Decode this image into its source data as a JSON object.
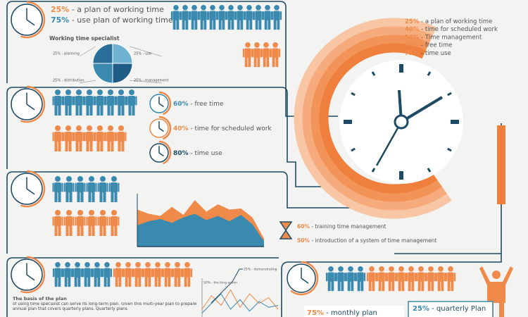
{
  "top": {
    "stats": [
      {
        "pct": "25%",
        "label": " - a plan of working time",
        "color": "#f08a4b"
      },
      {
        "pct": "75%",
        "label": " - use plan of working time",
        "color": "#3a8ab0"
      }
    ]
  },
  "pie": {
    "title": "Working time specialist",
    "values": [
      25,
      25,
      25,
      25
    ],
    "labels": [
      "25% - use",
      "25% - management",
      "25% - distribution",
      "25% - planning"
    ],
    "colors": [
      "#6fb2d2",
      "#1f5d86",
      "#3a8ab0",
      "#2a6f99"
    ]
  },
  "clock_legend": [
    {
      "pct": "25%",
      "label": " - a plan of working time"
    },
    {
      "pct": "40%",
      "label": " - time for scheduled work"
    },
    {
      "pct": "50%",
      "label": " - Time management"
    },
    {
      "pct": "65%",
      "label": " - free time"
    },
    {
      "pct": "75%",
      "label": " - time use"
    }
  ],
  "free_time": [
    {
      "pct": "60%",
      "label": " - free time",
      "color": "#3a8ab0"
    },
    {
      "pct": "40%",
      "label": " - time for scheduled work",
      "color": "#f08a4b"
    },
    {
      "pct": "80%",
      "label": " - time use",
      "color": "#1e4b63"
    }
  ],
  "area_chart": {
    "ylim": [
      0,
      100
    ],
    "series": [
      {
        "color": "#f08a4b",
        "values": [
          70,
          62,
          58,
          75,
          60,
          88,
          66,
          80,
          70,
          72,
          55,
          15
        ]
      },
      {
        "color": "#3a8ab0",
        "values": [
          40,
          48,
          52,
          45,
          55,
          62,
          50,
          58,
          48,
          60,
          42,
          10
        ]
      }
    ]
  },
  "training": [
    {
      "pct": "60%",
      "label": " - training time management"
    },
    {
      "pct": "50%",
      "label": " - introduction of a system of time management"
    }
  ],
  "plan": {
    "title": "The basis of the plan",
    "text": "of using time specialist can serve its long-term plan. Given this multi-year plan to prepare annual plan that covers quarterly plans. Quarterly plans"
  },
  "line_chart": {
    "ylim": [
      0,
      100
    ],
    "labels": [
      "25% - demonstrating",
      "50% - the king action"
    ],
    "series": [
      {
        "color": "#f08a4b",
        "values": [
          20,
          55,
          30,
          70,
          25,
          60,
          35,
          50,
          20
        ]
      },
      {
        "color": "#3a8ab0",
        "values": [
          10,
          35,
          60,
          20,
          45,
          15,
          40,
          25,
          30
        ]
      }
    ]
  },
  "plans": [
    {
      "pct": "75%",
      "label": " - monthly plan"
    },
    {
      "pct": "25%",
      "label": " - quarterly Plan"
    }
  ]
}
